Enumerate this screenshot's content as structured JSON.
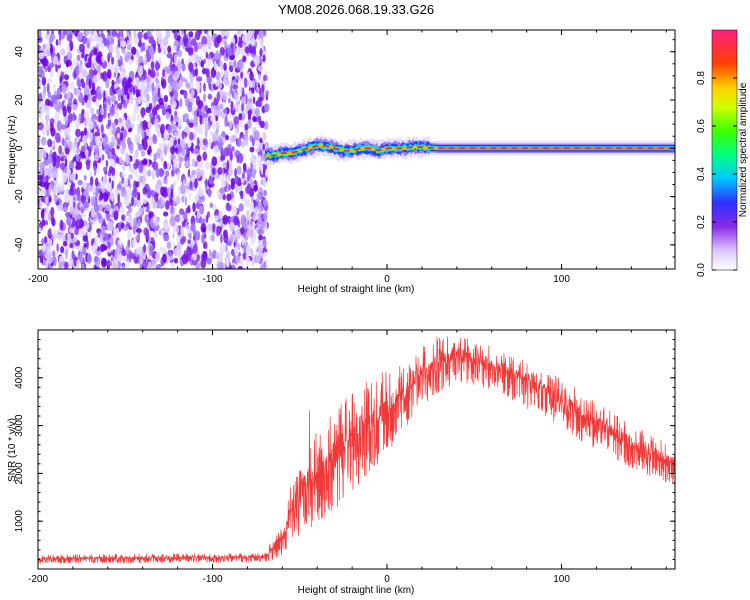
{
  "title": "YM08.2026.068.19.33.G26",
  "chart_data": [
    {
      "type": "heatmap",
      "title": "YM08.2026.068.19.33.G26",
      "xlabel": "Height of straight line (km)",
      "ylabel": "Frequency (Hz)",
      "xlim": [
        -200,
        165
      ],
      "ylim": [
        -50,
        49
      ],
      "x_ticks": [
        -200,
        -100,
        0,
        100
      ],
      "y_ticks": [
        -40,
        -20,
        0,
        20,
        40
      ],
      "noise_region_x": [
        -200,
        -71
      ],
      "signal_trace": {
        "x": [
          -70,
          -65,
          -60,
          -55,
          -50,
          -45,
          -40,
          -35,
          -30,
          -25,
          -20,
          -15,
          -10,
          -5,
          0,
          5,
          10,
          15,
          20,
          30,
          40,
          60,
          80,
          100,
          120,
          140,
          165
        ],
        "freq": [
          -3,
          -3,
          -2,
          -2,
          -1,
          0,
          1,
          1,
          0,
          -1,
          -1,
          0,
          0,
          -1,
          0,
          0,
          0,
          0.5,
          0.5,
          0,
          0,
          0,
          0,
          0,
          0,
          0,
          0
        ]
      },
      "colorbar": {
        "label": "Normalized spectral amplitude",
        "range": [
          0,
          1
        ],
        "ticks": [
          0,
          0.2,
          0.4,
          0.6,
          0.8
        ],
        "tick_labels": [
          "0.0",
          "0.2",
          "0.4",
          "0.6",
          "0.8"
        ]
      }
    },
    {
      "type": "line",
      "xlabel": "Height of straight line (km)",
      "ylabel": "SNR (10 * v/v)",
      "xlim": [
        -200,
        165
      ],
      "ylim": [
        0,
        5000
      ],
      "x_ticks": [
        -200,
        -100,
        0,
        100
      ],
      "y_ticks": [
        1000,
        2000,
        3000,
        4000
      ],
      "color": "#f03a3a",
      "envelope": {
        "x": [
          -200,
          -150,
          -100,
          -70,
          -59,
          -55,
          -50,
          -40,
          -30,
          -20,
          -10,
          0,
          10,
          20,
          30,
          40,
          50,
          60,
          70,
          80,
          90,
          100,
          110,
          120,
          130,
          140,
          150,
          160,
          165
        ],
        "low": [
          120,
          120,
          130,
          140,
          200,
          600,
          700,
          900,
          1200,
          1600,
          2000,
          2400,
          2900,
          3300,
          3700,
          3900,
          3850,
          3700,
          3550,
          3350,
          3150,
          2950,
          2700,
          2500,
          2300,
          2100,
          1950,
          1800,
          1750
        ],
        "high": [
          300,
          320,
          330,
          340,
          1100,
          1800,
          2300,
          2900,
          3300,
          3700,
          3900,
          4100,
          4400,
          4700,
          4900,
          4950,
          4800,
          4650,
          4500,
          4350,
          4200,
          4000,
          3750,
          3500,
          3250,
          3050,
          2850,
          2650,
          2550
        ]
      }
    }
  ]
}
